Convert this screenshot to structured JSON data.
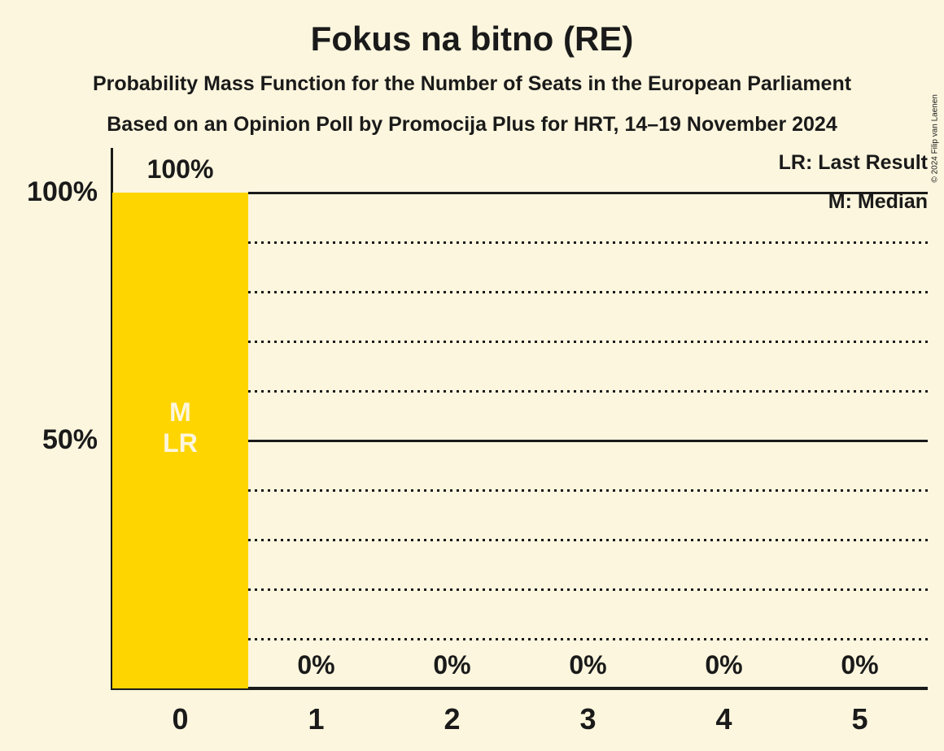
{
  "page": {
    "background_color": "#FCF6DE",
    "text_color": "#1A1A1A",
    "copyright": "© 2024 Filip van Laenen"
  },
  "header": {
    "title": "Fokus na bitno (RE)",
    "subtitle1": "Probability Mass Function for the Number of Seats in the European Parliament",
    "subtitle2": "Based on an Opinion Poll by Promocija Plus for HRT, 14–19 November 2024"
  },
  "legend": {
    "lr": "LR: Last Result",
    "m": "M: Median"
  },
  "chart_data": {
    "type": "bar",
    "title": "Fokus na bitno (RE)",
    "xlabel": "",
    "ylabel": "",
    "categories": [
      "0",
      "1",
      "2",
      "3",
      "4",
      "5"
    ],
    "values": [
      100,
      0,
      0,
      0,
      0,
      0
    ],
    "value_labels": [
      "100%",
      "0%",
      "0%",
      "0%",
      "0%",
      "0%"
    ],
    "ylim": [
      0,
      100
    ],
    "y_ticks": [
      {
        "pct": 100,
        "label": "100%"
      },
      {
        "pct": 50,
        "label": "50%"
      }
    ],
    "gridlines": {
      "solid_pct": [
        100,
        50
      ],
      "dotted_pct": [
        90,
        80,
        70,
        60,
        40,
        30,
        20,
        10
      ]
    },
    "bar_color": "#FFD500",
    "annotation_text_color": "#FCF6DE",
    "annotations": [
      {
        "category_index": 0,
        "lines": [
          "M",
          "LR"
        ]
      }
    ],
    "legend_position": "top-right",
    "grid": true
  }
}
